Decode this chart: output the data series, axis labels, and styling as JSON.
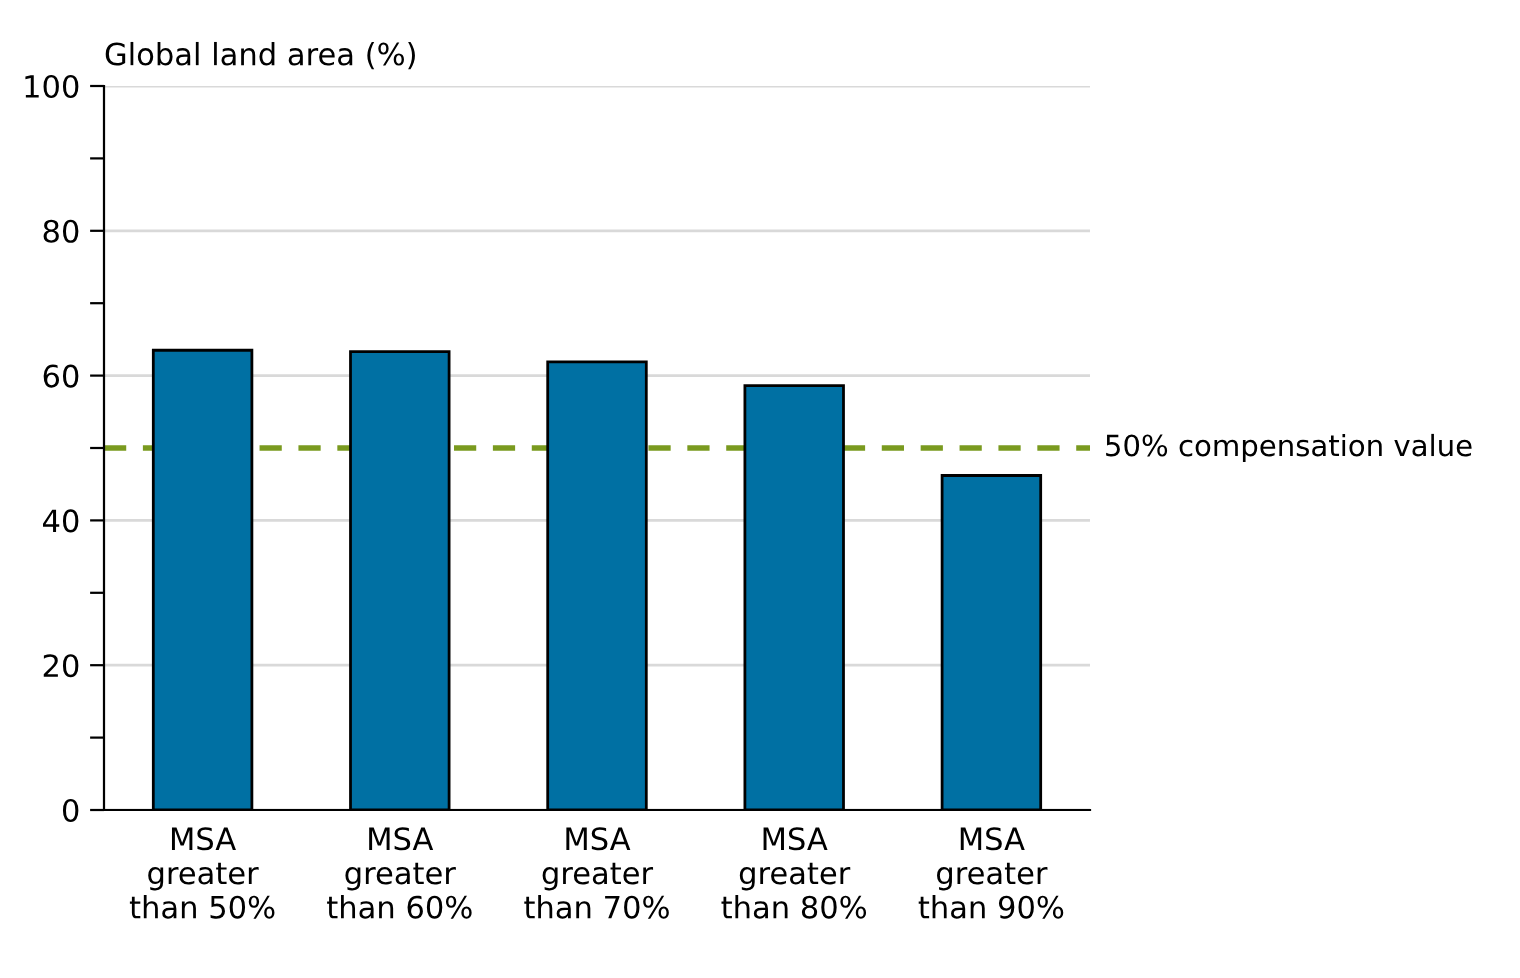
{
  "chart_data": {
    "type": "bar",
    "ylabel": "Global land area (%)",
    "categories": [
      "MSA\ngreater\nthan 50%",
      "MSA\ngreater\nthan 60%",
      "MSA\ngreater\nthan 70%",
      "MSA\ngreater\nthan 80%",
      "MSA\ngreater\nthan 90%"
    ],
    "values": [
      63.5,
      63.3,
      61.9,
      58.6,
      46.2
    ],
    "color": "#0070a3",
    "ylim": [
      0,
      100
    ],
    "yticks": [
      0,
      {
        "value": 10,
        "label": null
      },
      20,
      {
        "value": 30,
        "label": null
      },
      40,
      {
        "value": 50,
        "label": null
      },
      60,
      {
        "value": 70,
        "label": null
      },
      80,
      {
        "value": 90,
        "label": null
      },
      100
    ],
    "grid": "y",
    "ref_lines": [
      {
        "axis": "y",
        "value": 50,
        "label": "50% compensation value",
        "color": "#7a9a1f",
        "line_style": "dashed"
      }
    ]
  }
}
